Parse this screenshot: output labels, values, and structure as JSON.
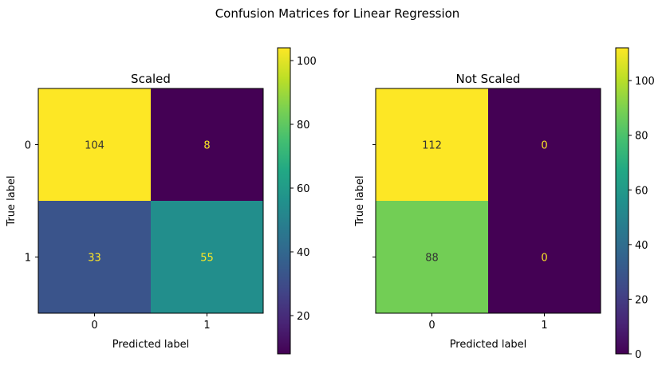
{
  "suptitle": "Confusion Matrices for Linear Regression",
  "chart_data": [
    {
      "type": "heatmap",
      "title": "Scaled",
      "xlabel": "Predicted label",
      "ylabel": "True label",
      "x_ticks": [
        "0",
        "1"
      ],
      "y_ticks": [
        "0",
        "1"
      ],
      "matrix": [
        [
          104,
          8
        ],
        [
          33,
          55
        ]
      ],
      "colormap": "viridis",
      "colorbar": {
        "range": [
          8,
          104
        ],
        "ticks": [
          20,
          40,
          60,
          80,
          100
        ]
      }
    },
    {
      "type": "heatmap",
      "title": "Not Scaled",
      "xlabel": "Predicted label",
      "ylabel": "True label",
      "x_ticks": [
        "0",
        "1"
      ],
      "y_ticks": [
        "0",
        "1"
      ],
      "matrix": [
        [
          112,
          0
        ],
        [
          88,
          0
        ]
      ],
      "colormap": "viridis",
      "colorbar": {
        "range": [
          0,
          112
        ],
        "ticks": [
          0,
          20,
          40,
          60,
          80,
          100
        ]
      }
    }
  ]
}
